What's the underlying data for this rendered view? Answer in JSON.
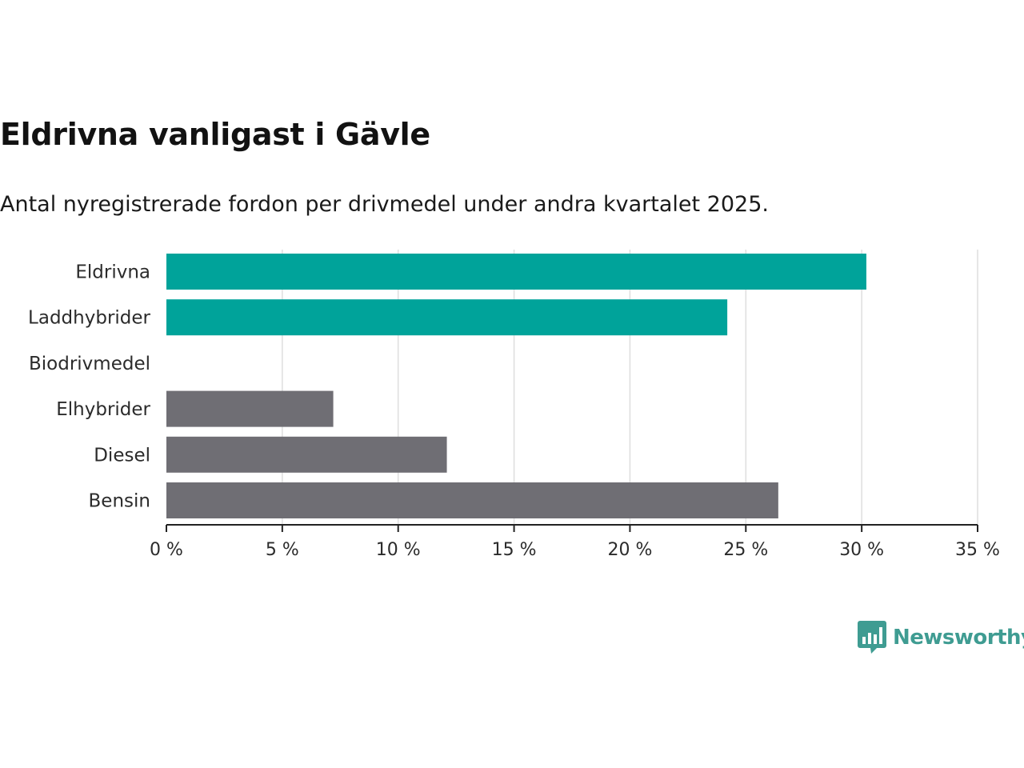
{
  "header": {
    "title": "Eldrivna vanligast i Gävle",
    "subtitle": "Antal nyregistrerade fordon per drivmedel under andra kvartalet 2025."
  },
  "branding": {
    "logo_text": "Newsworthy",
    "logo_icon": "bar-chart-speech-bubble-icon",
    "logo_color": "#3f9c92"
  },
  "chart_data": {
    "type": "bar",
    "orientation": "horizontal",
    "categories": [
      "Eldrivna",
      "Laddhybrider",
      "Biodrivmedel",
      "Elhybrider",
      "Diesel",
      "Bensin"
    ],
    "values": [
      30.2,
      24.2,
      0,
      7.2,
      12.1,
      26.4
    ],
    "colors": [
      "#00a39a",
      "#00a39a",
      "#00a39a",
      "#6f6e74",
      "#6f6e74",
      "#6f6e74"
    ],
    "xlim": [
      0,
      35
    ],
    "x_ticks": [
      0,
      5,
      10,
      15,
      20,
      25,
      30,
      35
    ],
    "x_tick_labels": [
      "0 %",
      "5 %",
      "10 %",
      "15 %",
      "20 %",
      "25 %",
      "30 %",
      "35 %"
    ],
    "grid": "vertical",
    "xlabel": "",
    "ylabel": ""
  }
}
